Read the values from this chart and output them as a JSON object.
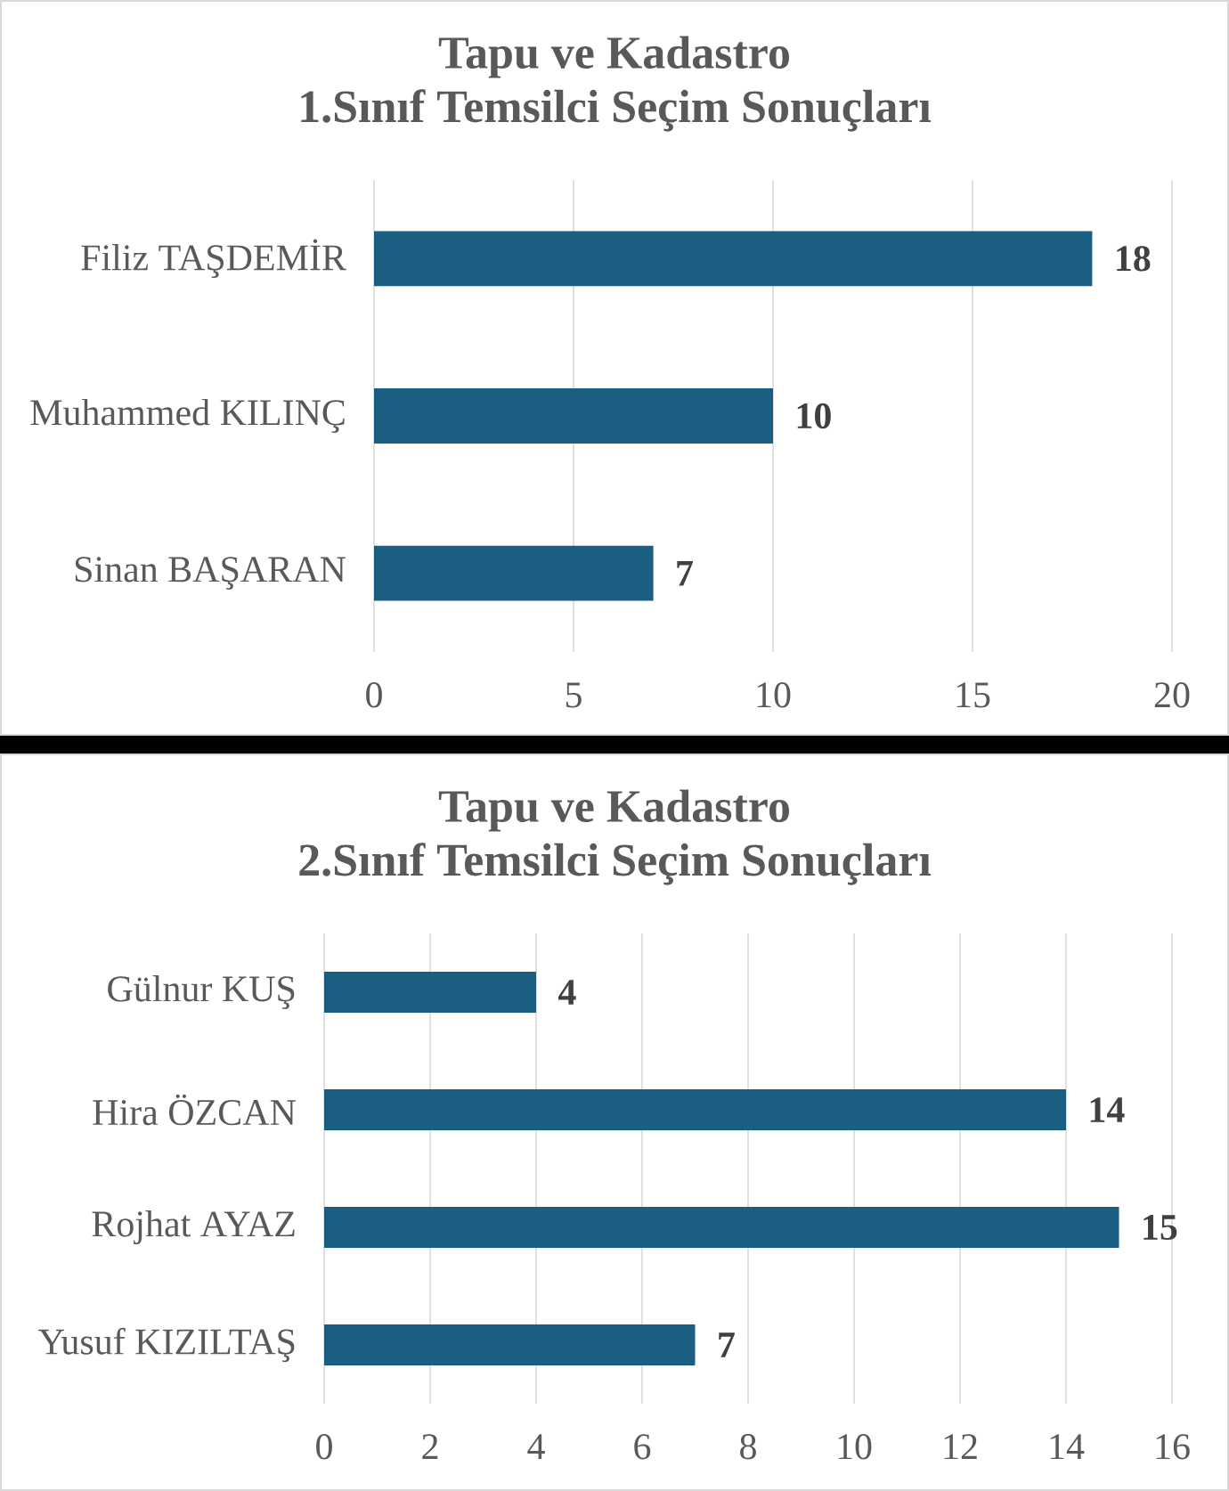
{
  "chart_data": [
    {
      "type": "bar",
      "orientation": "horizontal",
      "title": "Tapu ve Kadastro",
      "subtitle": "1.Sınıf Temsilci Seçim Sonuçları",
      "categories": [
        "Filiz TAŞDEMİR",
        "Muhammed KILINÇ",
        "Sinan BAŞARAN"
      ],
      "values": [
        18,
        10,
        7
      ],
      "color": "#1a5e82",
      "xlim": [
        0,
        20
      ],
      "xticks": [
        0,
        5,
        10,
        15,
        20
      ],
      "grid": "x",
      "data_labels": true
    },
    {
      "type": "bar",
      "orientation": "horizontal",
      "title": "Tapu ve Kadastro",
      "subtitle": "2.Sınıf Temsilci Seçim Sonuçları",
      "categories": [
        "Gülnur KUŞ",
        "Hira ÖZCAN",
        "Rojhat AYAZ",
        "Yusuf KIZILTAŞ"
      ],
      "values": [
        4,
        14,
        15,
        7
      ],
      "color": "#1a5e82",
      "xlim": [
        0,
        16
      ],
      "xticks": [
        0,
        2,
        4,
        6,
        8,
        10,
        12,
        14,
        16
      ],
      "grid": "x",
      "data_labels": true
    }
  ]
}
